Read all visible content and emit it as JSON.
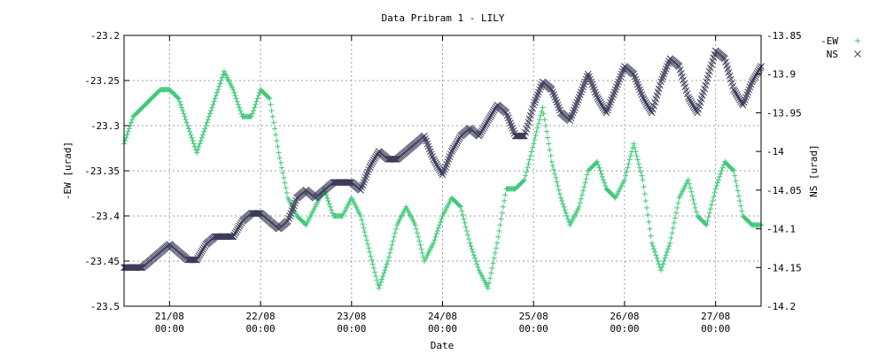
{
  "chart_data": {
    "type": "scatter",
    "title": "Data Pribram 1 - LILY",
    "xlabel": "Date",
    "ylabel_left": "-EW [urad]",
    "ylabel_right": "NS [urad]",
    "grid": true,
    "legend_position": "top-right outside",
    "x_range_days": [
      20.5,
      27.5
    ],
    "ylim_left": [
      -23.5,
      -23.2
    ],
    "ylim_right": [
      -14.2,
      -13.85
    ],
    "x_ticks": [
      {
        "day": 21,
        "line1": "21/08",
        "line2": "00:00"
      },
      {
        "day": 22,
        "line1": "22/08",
        "line2": "00:00"
      },
      {
        "day": 23,
        "line1": "23/08",
        "line2": "00:00"
      },
      {
        "day": 24,
        "line1": "24/08",
        "line2": "00:00"
      },
      {
        "day": 25,
        "line1": "25/08",
        "line2": "00:00"
      },
      {
        "day": 26,
        "line1": "26/08",
        "line2": "00:00"
      },
      {
        "day": 27,
        "line1": "27/08",
        "line2": "00:00"
      }
    ],
    "y_ticks_left": [
      "-23.2",
      "-23.25",
      "-23.3",
      "-23.35",
      "-23.4",
      "-23.45",
      "-23.5"
    ],
    "y_ticks_right": [
      "-13.85",
      "-13.9",
      "-13.95",
      "-14",
      "-14.05",
      "-14.1",
      "-14.15",
      "-14.2"
    ],
    "series": [
      {
        "name": "-EW",
        "axis": "left",
        "marker": "plus",
        "color": "#3cc878",
        "x": [
          20.5,
          20.6,
          20.7,
          20.8,
          20.9,
          21.0,
          21.1,
          21.2,
          21.3,
          21.4,
          21.5,
          21.6,
          21.7,
          21.8,
          21.9,
          22.0,
          22.1,
          22.2,
          22.3,
          22.4,
          22.5,
          22.6,
          22.7,
          22.8,
          22.9,
          23.0,
          23.1,
          23.2,
          23.3,
          23.4,
          23.5,
          23.6,
          23.7,
          23.8,
          23.9,
          24.0,
          24.1,
          24.2,
          24.3,
          24.4,
          24.5,
          24.6,
          24.7,
          24.8,
          24.9,
          25.0,
          25.1,
          25.2,
          25.3,
          25.4,
          25.5,
          25.6,
          25.7,
          25.8,
          25.9,
          26.0,
          26.1,
          26.2,
          26.3,
          26.4,
          26.5,
          26.6,
          26.7,
          26.8,
          26.9,
          27.0,
          27.1,
          27.2,
          27.3,
          27.4,
          27.5
        ],
        "y": [
          -23.32,
          -23.29,
          -23.28,
          -23.27,
          -23.26,
          -23.26,
          -23.27,
          -23.3,
          -23.33,
          -23.3,
          -23.27,
          -23.24,
          -23.26,
          -23.29,
          -23.29,
          -23.26,
          -23.27,
          -23.33,
          -23.38,
          -23.4,
          -23.41,
          -23.39,
          -23.37,
          -23.4,
          -23.4,
          -23.38,
          -23.4,
          -23.44,
          -23.48,
          -23.45,
          -23.41,
          -23.39,
          -23.41,
          -23.45,
          -23.43,
          -23.4,
          -23.38,
          -23.39,
          -23.43,
          -23.46,
          -23.48,
          -23.43,
          -23.37,
          -23.37,
          -23.36,
          -23.32,
          -23.28,
          -23.34,
          -23.38,
          -23.41,
          -23.39,
          -23.35,
          -23.34,
          -23.37,
          -23.38,
          -23.36,
          -23.32,
          -23.36,
          -23.43,
          -23.46,
          -23.43,
          -23.38,
          -23.36,
          -23.4,
          -23.41,
          -23.37,
          -23.34,
          -23.35,
          -23.4,
          -23.41,
          -23.41
        ]
      },
      {
        "name": "NS",
        "axis": "right",
        "marker": "cross",
        "color": "#3c3c5a",
        "x": [
          20.5,
          20.6,
          20.7,
          20.8,
          20.9,
          21.0,
          21.1,
          21.2,
          21.3,
          21.4,
          21.5,
          21.6,
          21.7,
          21.8,
          21.9,
          22.0,
          22.1,
          22.2,
          22.3,
          22.4,
          22.5,
          22.6,
          22.7,
          22.8,
          22.9,
          23.0,
          23.1,
          23.2,
          23.3,
          23.4,
          23.5,
          23.6,
          23.7,
          23.8,
          23.9,
          24.0,
          24.1,
          24.2,
          24.3,
          24.4,
          24.5,
          24.6,
          24.7,
          24.8,
          24.9,
          25.0,
          25.1,
          25.2,
          25.3,
          25.4,
          25.5,
          25.6,
          25.7,
          25.8,
          25.9,
          26.0,
          26.1,
          26.2,
          26.3,
          26.4,
          26.5,
          26.6,
          26.7,
          26.8,
          26.9,
          27.0,
          27.1,
          27.2,
          27.3,
          27.4,
          27.5
        ],
        "y": [
          -14.15,
          -14.15,
          -14.15,
          -14.14,
          -14.13,
          -14.12,
          -14.13,
          -14.14,
          -14.14,
          -14.12,
          -14.11,
          -14.11,
          -14.11,
          -14.09,
          -14.08,
          -14.08,
          -14.09,
          -14.1,
          -14.09,
          -14.06,
          -14.05,
          -14.06,
          -14.05,
          -14.04,
          -14.04,
          -14.04,
          -14.05,
          -14.02,
          -14.0,
          -14.01,
          -14.01,
          -14.0,
          -13.99,
          -13.98,
          -14.01,
          -14.03,
          -14.0,
          -13.98,
          -13.97,
          -13.98,
          -13.96,
          -13.94,
          -13.95,
          -13.98,
          -13.98,
          -13.94,
          -13.91,
          -13.92,
          -13.95,
          -13.96,
          -13.93,
          -13.9,
          -13.93,
          -13.95,
          -13.92,
          -13.89,
          -13.9,
          -13.93,
          -13.95,
          -13.91,
          -13.88,
          -13.89,
          -13.93,
          -13.95,
          -13.91,
          -13.87,
          -13.88,
          -13.92,
          -13.94,
          -13.91,
          -13.89
        ]
      }
    ]
  }
}
